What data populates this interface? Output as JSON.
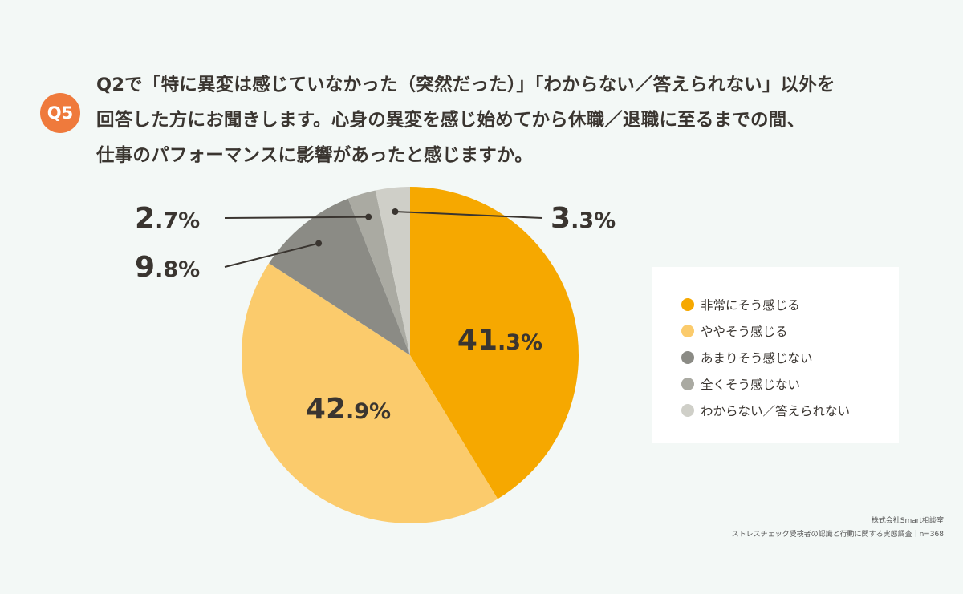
{
  "question": {
    "badge": "Q5",
    "lines": [
      "Q2で「特に異変は感じていなかった（突然だった）」「わからない／答えられない」以外を",
      "回答した方にお聞きします。心身の異変を感じ始めてから休職／退職に至るまでの間、",
      "仕事のパフォーマンスに影響があったと感じますか。"
    ]
  },
  "chart_data": {
    "type": "pie",
    "start": "top",
    "direction": "clockwise",
    "categories": [
      "非常にそう感じる",
      "ややそう感じる",
      "あまりそう感じない",
      "全くそう感じない",
      "わからない／答えられない"
    ],
    "values": [
      41.3,
      42.9,
      9.8,
      2.7,
      3.3
    ],
    "labels": [
      {
        "int": "41",
        "dec": ".3%"
      },
      {
        "int": "42",
        "dec": ".9%"
      },
      {
        "int": "9",
        "dec": ".8%"
      },
      {
        "int": "2",
        "dec": ".7%"
      },
      {
        "int": "3",
        "dec": ".3%"
      }
    ],
    "colors": [
      "#f6a800",
      "#fbcb6c",
      "#8b8b85",
      "#aaaaa2",
      "#cfcfc8"
    ],
    "legend_placement": "right"
  },
  "legend": {
    "items": [
      {
        "label": "非常にそう感じる",
        "color": "#f6a800"
      },
      {
        "label": "ややそう感じる",
        "color": "#fbcb6c"
      },
      {
        "label": "あまりそう感じない",
        "color": "#8b8b85"
      },
      {
        "label": "全くそう感じない",
        "color": "#aaaaa2"
      },
      {
        "label": "わからない／答えられない",
        "color": "#cfcfc8"
      }
    ]
  },
  "credit": {
    "company": "株式会社Smart相談室",
    "survey": "ストレスチェック受検者の認識と行動に関する実態調査｜n=368"
  }
}
